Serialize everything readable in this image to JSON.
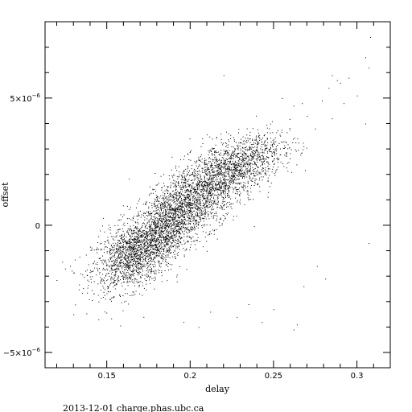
{
  "chart_data": {
    "type": "scatter",
    "title": "",
    "xlabel": "delay",
    "ylabel": "offset",
    "xlim": [
      0.113,
      0.32
    ],
    "ylim": [
      -5.6e-06,
      8e-06
    ],
    "xticks": [
      {
        "value": 0.15,
        "label": "0.15"
      },
      {
        "value": 0.2,
        "label": "0.2"
      },
      {
        "value": 0.25,
        "label": "0.25"
      },
      {
        "value": 0.3,
        "label": "0.3"
      }
    ],
    "yticks": [
      {
        "value": -5e-06,
        "mantissa": "−5×10",
        "exponent": "−6"
      },
      {
        "value": 0,
        "mantissa": "0",
        "exponent": ""
      },
      {
        "value": 5e-06,
        "mantissa": "5×10",
        "exponent": "−6"
      }
    ],
    "grid": false,
    "marker_color": "#000000",
    "clusters": [
      {
        "cx": 0.165,
        "cy": -1.2e-06,
        "sx": 0.012,
        "sy": 7e-07,
        "n": 1400,
        "rho": 0.4
      },
      {
        "cx": 0.185,
        "cy": 0.0,
        "sx": 0.011,
        "sy": 8e-07,
        "n": 1300,
        "rho": 0.45
      },
      {
        "cx": 0.205,
        "cy": 1.2e-06,
        "sx": 0.013,
        "sy": 8e-07,
        "n": 1300,
        "rho": 0.45
      },
      {
        "cx": 0.225,
        "cy": 2.2e-06,
        "sx": 0.012,
        "sy": 6e-07,
        "n": 900,
        "rho": 0.4
      },
      {
        "cx": 0.245,
        "cy": 2.8e-06,
        "sx": 0.01,
        "sy": 5e-07,
        "n": 300,
        "rho": 0.3
      }
    ],
    "outliers": [
      {
        "x": 0.125,
        "y": -1.7e-06
      },
      {
        "x": 0.128,
        "y": -1.6e-06
      },
      {
        "x": 0.13,
        "y": -3.5e-06
      },
      {
        "x": 0.145,
        "y": -3.7e-06
      },
      {
        "x": 0.152,
        "y": -2.9e-06
      },
      {
        "x": 0.172,
        "y": -3.6e-06
      },
      {
        "x": 0.196,
        "y": -3.8e-06
      },
      {
        "x": 0.205,
        "y": -4e-06
      },
      {
        "x": 0.212,
        "y": -3.4e-06
      },
      {
        "x": 0.228,
        "y": -3.6e-06
      },
      {
        "x": 0.235,
        "y": -3.1e-06
      },
      {
        "x": 0.243,
        "y": -3.8e-06
      },
      {
        "x": 0.25,
        "y": -3.3e-06
      },
      {
        "x": 0.262,
        "y": -4.1e-06
      },
      {
        "x": 0.264,
        "y": -3.9e-06
      },
      {
        "x": 0.268,
        "y": -2.4e-06
      },
      {
        "x": 0.276,
        "y": -1.6e-06
      },
      {
        "x": 0.281,
        "y": -2.1e-06
      },
      {
        "x": 0.307,
        "y": -7e-07
      },
      {
        "x": 0.255,
        "y": 5e-06
      },
      {
        "x": 0.262,
        "y": 4.7e-06
      },
      {
        "x": 0.267,
        "y": 4.8e-06
      },
      {
        "x": 0.27,
        "y": 4.3e-06
      },
      {
        "x": 0.279,
        "y": 4.9e-06
      },
      {
        "x": 0.283,
        "y": 5.4e-06
      },
      {
        "x": 0.285,
        "y": 5.9e-06
      },
      {
        "x": 0.288,
        "y": 5.7e-06
      },
      {
        "x": 0.29,
        "y": 5.6e-06
      },
      {
        "x": 0.292,
        "y": 4.8e-06
      },
      {
        "x": 0.295,
        "y": 5.8e-06
      },
      {
        "x": 0.3,
        "y": 5.1e-06
      },
      {
        "x": 0.305,
        "y": 6.6e-06
      },
      {
        "x": 0.307,
        "y": 6.2e-06
      },
      {
        "x": 0.308,
        "y": 7.4e-06
      },
      {
        "x": 0.285,
        "y": 4.2e-06
      },
      {
        "x": 0.275,
        "y": 3.8e-06
      },
      {
        "x": 0.22,
        "y": 5.9e-06
      },
      {
        "x": 0.305,
        "y": 4e-06
      }
    ]
  },
  "footer": {
    "text": "2013-12-01 charge.phas.ubc.ca"
  }
}
